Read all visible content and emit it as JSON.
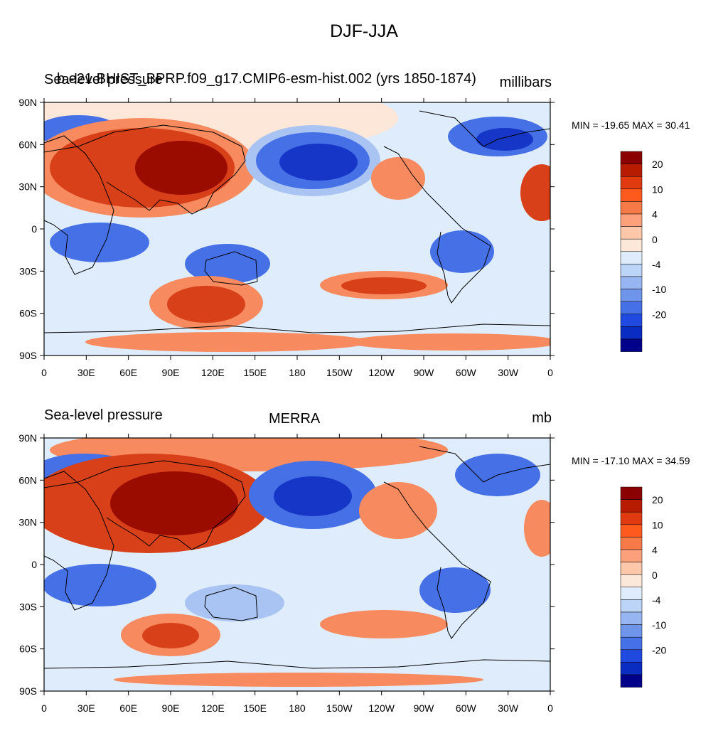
{
  "figure": {
    "title": "DJF-JJA"
  },
  "panels": [
    {
      "left_title": "Sea-level pressure",
      "center_title": "b.e21.BHIST_BPRP.f09_g17.CMIP6-esm-hist.002 (yrs 1850-1874)",
      "units": "millibars",
      "min_max": "MIN = -19.65 MAX =  30.41"
    },
    {
      "left_title": "Sea-level pressure",
      "center_title": "MERRA",
      "units": "mb",
      "min_max": "MIN = -17.10 MAX =  34.59"
    }
  ],
  "axes": {
    "lat_labels": [
      "90N",
      "60N",
      "30N",
      "0",
      "30S",
      "60S",
      "90S"
    ],
    "lon_labels": [
      "0",
      "30E",
      "60E",
      "90E",
      "120E",
      "150E",
      "180",
      "150W",
      "120W",
      "90W",
      "60W",
      "30W",
      "0"
    ]
  },
  "colorbar": {
    "labels": [
      "20",
      "10",
      "4",
      "0",
      "-4",
      "-10",
      "-20"
    ],
    "colors": [
      "#8b0000",
      "#b81c00",
      "#e03a10",
      "#ff5a1e",
      "#f67a48",
      "#fba07a",
      "#fdc7aa",
      "#fde7d8",
      "#deecfb",
      "#bcd4f7",
      "#97b6f1",
      "#6f95eb",
      "#4670e6",
      "#1f49df",
      "#0a2cc0",
      "#00008b"
    ]
  },
  "colors": {
    "high_dark": "#9a0c00",
    "high": "#d8401a",
    "high_light": "#f78a5e",
    "neutral_warm": "#fde7d8",
    "neutral_cool": "#deecfb",
    "low_light": "#a9c4f3",
    "low": "#4670e6",
    "low_dark": "#1536c7"
  }
}
